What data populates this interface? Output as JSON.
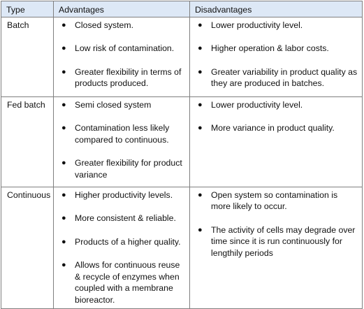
{
  "headers": {
    "type": "Type",
    "advantages": "Advantages",
    "disadvantages": "Disadvantages"
  },
  "rows": [
    {
      "type": "Batch",
      "advantages": [
        "Closed system.",
        "Low risk of contamination.",
        "Greater flexibility in terms of products produced."
      ],
      "disadvantages": [
        "Lower productivity level.",
        "Higher operation & labor costs.",
        "Greater variability in product quality as they are produced in batches."
      ]
    },
    {
      "type": "Fed batch",
      "advantages": [
        "Semi closed system",
        "Contamination less likely compared to continuous.",
        "Greater flexibility for product variance"
      ],
      "disadvantages": [
        "Lower productivity level.",
        "More variance in product quality."
      ]
    },
    {
      "type": "Continuous",
      "advantages": [
        "Higher productivity levels.",
        "More consistent & reliable.",
        "Products of a higher quality.",
        "Allows for continuous reuse & recycle of enzymes when coupled with a membrane bioreactor."
      ],
      "disadvantages": [
        "Open system so contamination is more likely to occur.",
        "The activity of cells may degrade over time since it is run continuously for lengthily periods"
      ]
    }
  ]
}
